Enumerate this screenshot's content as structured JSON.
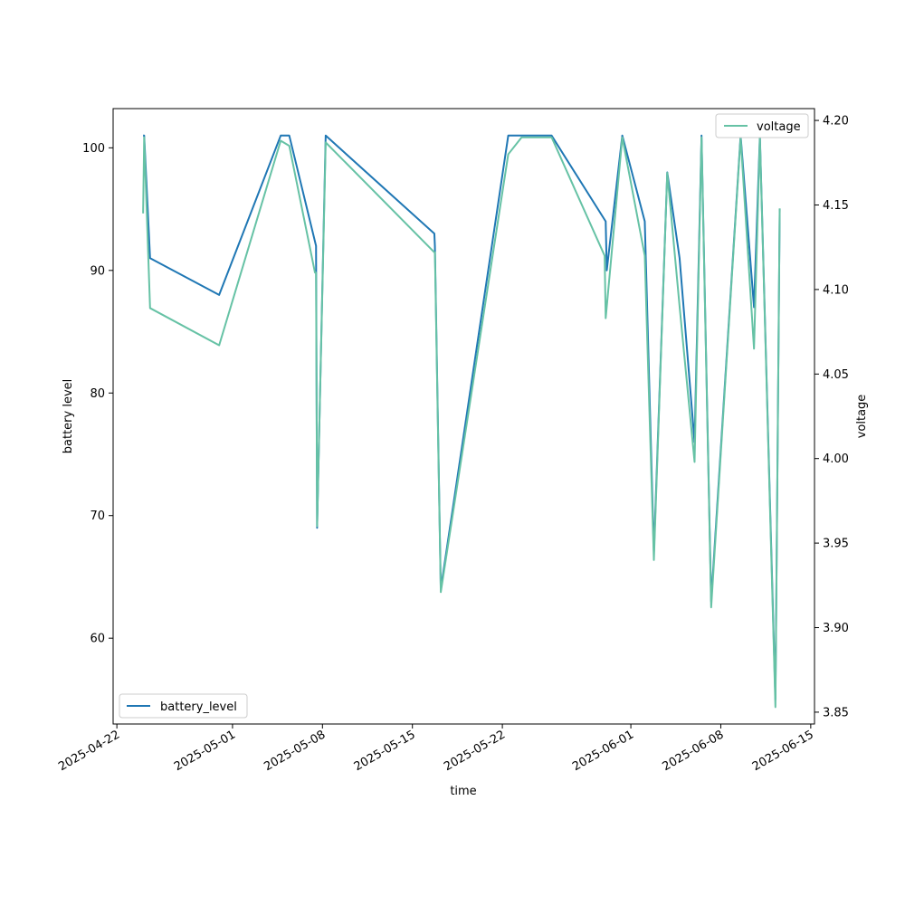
{
  "chart_data": {
    "type": "line",
    "xlabel": "time",
    "ylabel_left": "battery level",
    "ylabel_right": "voltage",
    "xlim": [
      "2025-04-21T17:00",
      "2025-06-15T07:00"
    ],
    "ylim_left": [
      53.0,
      103.2
    ],
    "ylim_right": [
      3.843,
      4.207
    ],
    "x_ticks": [
      "2025-04-22",
      "2025-05-01",
      "2025-05-08",
      "2025-05-15",
      "2025-05-22",
      "2025-06-01",
      "2025-06-08",
      "2025-06-15"
    ],
    "y_left_ticks": [
      60,
      70,
      80,
      90,
      100
    ],
    "y_right_ticks": [
      "3.85",
      "3.90",
      "3.95",
      "4.00",
      "4.05",
      "4.10",
      "4.15",
      "4.20"
    ],
    "legend_left": {
      "label": "battery_level",
      "placement": "lower-left"
    },
    "legend_right": {
      "label": "voltage",
      "placement": "upper-right"
    },
    "series": [
      {
        "name": "battery_level",
        "axis": "left",
        "color": "#1f77b4",
        "points": [
          [
            "2025-04-24T01:00",
            101
          ],
          [
            "2025-04-24T03:00",
            101
          ],
          [
            "2025-04-24T14:00",
            91
          ],
          [
            "2025-04-29T23:00",
            88
          ],
          [
            "2025-05-04T18:00",
            101
          ],
          [
            "2025-05-05T10:00",
            101
          ],
          [
            "2025-05-07T12:00",
            92
          ],
          [
            "2025-05-07T14:00",
            69
          ],
          [
            "2025-05-08T06:00",
            101
          ],
          [
            "2025-05-16T17:00",
            93
          ],
          [
            "2025-05-16T18:00",
            92
          ],
          [
            "2025-05-17T05:00",
            64
          ],
          [
            "2025-05-22T11:00",
            101
          ],
          [
            "2025-05-25T20:00",
            101
          ],
          [
            "2025-05-30T01:00",
            94
          ],
          [
            "2025-05-30T03:00",
            90
          ],
          [
            "2025-05-31T08:00",
            101
          ],
          [
            "2025-06-02T02:00",
            94
          ],
          [
            "2025-06-02T19:00",
            67
          ],
          [
            "2025-06-03T20:00",
            98
          ],
          [
            "2025-06-04T19:00",
            91
          ],
          [
            "2025-06-05T23:00",
            76
          ],
          [
            "2025-06-06T12:00",
            101
          ],
          [
            "2025-06-07T06:00",
            63
          ],
          [
            "2025-06-09T13:00",
            101
          ],
          [
            "2025-06-10T14:00",
            87
          ],
          [
            "2025-06-11T01:00",
            101
          ],
          [
            "2025-06-12T06:00",
            55
          ],
          [
            "2025-06-12T14:00",
            95
          ]
        ]
      },
      {
        "name": "voltage",
        "axis": "right",
        "color": "#66c2a5",
        "points": [
          [
            "2025-04-24T01:00",
            4.145
          ],
          [
            "2025-04-24T03:00",
            4.19
          ],
          [
            "2025-04-24T14:00",
            4.089
          ],
          [
            "2025-04-29T23:00",
            4.067
          ],
          [
            "2025-05-04T18:00",
            4.188
          ],
          [
            "2025-05-05T10:00",
            4.185
          ],
          [
            "2025-05-07T10:00",
            4.11
          ],
          [
            "2025-05-07T12:00",
            4.11
          ],
          [
            "2025-05-07T14:00",
            3.96
          ],
          [
            "2025-05-08T06:00",
            4.187
          ],
          [
            "2025-05-16T17:00",
            4.122
          ],
          [
            "2025-05-16T18:00",
            4.122
          ],
          [
            "2025-05-17T05:00",
            3.921
          ],
          [
            "2025-05-22T11:00",
            4.18
          ],
          [
            "2025-05-23T12:00",
            4.19
          ],
          [
            "2025-05-25T20:00",
            4.19
          ],
          [
            "2025-05-29T23:00",
            4.12
          ],
          [
            "2025-05-30T01:00",
            4.083
          ],
          [
            "2025-05-31T08:00",
            4.19
          ],
          [
            "2025-06-02T02:00",
            4.12
          ],
          [
            "2025-06-02T19:00",
            3.94
          ],
          [
            "2025-06-03T20:00",
            4.169
          ],
          [
            "2025-06-04T19:00",
            4.09
          ],
          [
            "2025-06-05T23:00",
            3.998
          ],
          [
            "2025-06-06T12:00",
            4.19
          ],
          [
            "2025-06-07T06:00",
            3.912
          ],
          [
            "2025-06-09T13:00",
            4.19
          ],
          [
            "2025-06-10T14:00",
            4.065
          ],
          [
            "2025-06-11T01:00",
            4.19
          ],
          [
            "2025-06-12T06:00",
            3.853
          ],
          [
            "2025-06-12T14:00",
            4.148
          ]
        ]
      }
    ]
  }
}
